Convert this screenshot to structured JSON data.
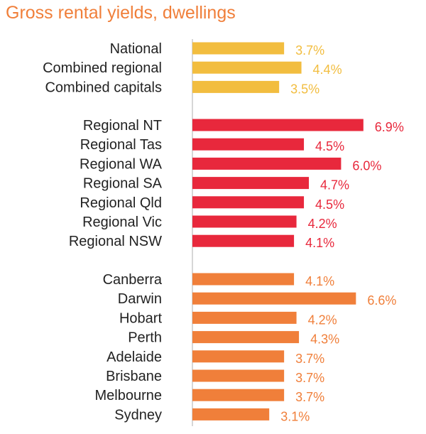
{
  "chart_data": {
    "type": "bar",
    "orientation": "horizontal",
    "title": "Gross rental yields, dwellings",
    "value_suffix": "%",
    "groups": [
      {
        "color": "#f2bd3f",
        "label_color": "#f2bd3f",
        "categories": [
          "National",
          "Combined regional",
          "Combined capitals"
        ],
        "values": [
          3.7,
          4.4,
          3.5
        ],
        "labels": [
          "3.7%",
          "4.4%",
          "3.5%"
        ]
      },
      {
        "color": "#e8283c",
        "label_color": "#e8283c",
        "categories": [
          "Regional NT",
          "Regional Tas",
          "Regional WA",
          "Regional SA",
          "Regional Qld",
          "Regional Vic",
          "Regional NSW"
        ],
        "values": [
          6.9,
          4.5,
          6.0,
          4.7,
          4.5,
          4.2,
          4.1
        ],
        "labels": [
          "6.9%",
          "4.5%",
          "6.0%",
          "4.7%",
          "4.5%",
          "4.2%",
          "4.1%"
        ]
      },
      {
        "color": "#f07f3a",
        "label_color": "#f07f3a",
        "categories": [
          "Canberra",
          "Darwin",
          "Hobart",
          "Perth",
          "Adelaide",
          "Brisbane",
          "Melbourne",
          "Sydney"
        ],
        "values": [
          4.1,
          6.6,
          4.2,
          4.3,
          3.7,
          3.7,
          3.7,
          3.1
        ],
        "labels": [
          "4.1%",
          "6.6%",
          "4.2%",
          "4.3%",
          "3.7%",
          "3.7%",
          "3.7%",
          "3.1%"
        ]
      }
    ]
  }
}
